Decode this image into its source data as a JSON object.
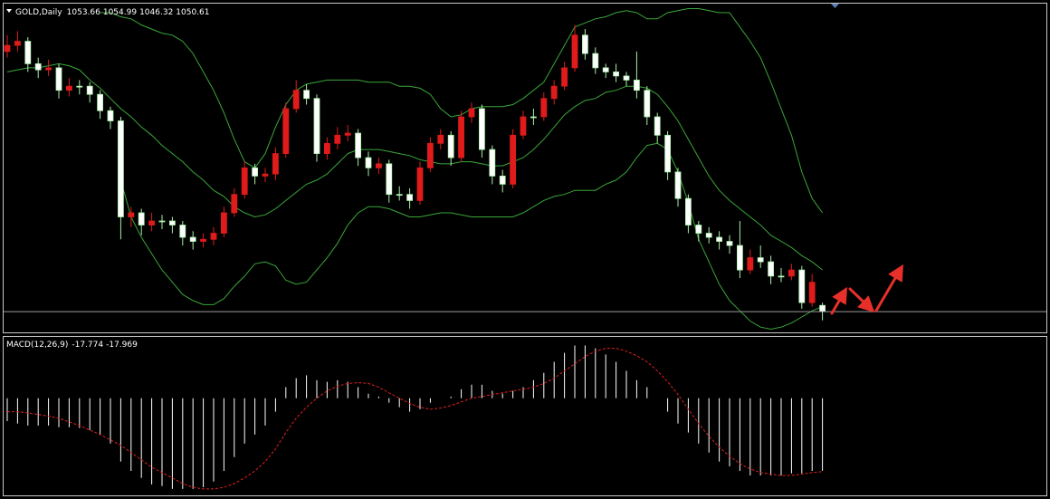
{
  "chart_data": [
    {
      "type": "candlestick",
      "title": "GOLD,Daily",
      "ylim": [
        1040,
        1201
      ],
      "up_color": "#e01b1b",
      "down_color": "#ffffff",
      "down_edge": "#a8f0a8",
      "ohlc": [
        [
          1178,
          1186,
          1175,
          1181
        ],
        [
          1181,
          1188,
          1178,
          1183
        ],
        [
          1183,
          1185,
          1168,
          1172
        ],
        [
          1172,
          1175,
          1165,
          1169
        ],
        [
          1169,
          1174,
          1166,
          1170
        ],
        [
          1170,
          1172,
          1155,
          1159
        ],
        [
          1159,
          1165,
          1156,
          1161
        ],
        [
          1161,
          1164,
          1157,
          1161
        ],
        [
          1161,
          1163,
          1153,
          1157
        ],
        [
          1157,
          1159,
          1145,
          1149
        ],
        [
          1149,
          1151,
          1140,
          1144
        ],
        [
          1144,
          1146,
          1086,
          1097
        ],
        [
          1097,
          1102,
          1092,
          1099
        ],
        [
          1099,
          1101,
          1088,
          1093
        ],
        [
          1093,
          1099,
          1090,
          1095
        ],
        [
          1095,
          1098,
          1091,
          1095
        ],
        [
          1095,
          1097,
          1089,
          1093
        ],
        [
          1093,
          1095,
          1083,
          1087
        ],
        [
          1087,
          1090,
          1081,
          1085
        ],
        [
          1085,
          1089,
          1082,
          1086
        ],
        [
          1086,
          1092,
          1083,
          1089
        ],
        [
          1089,
          1102,
          1087,
          1099
        ],
        [
          1099,
          1111,
          1097,
          1108
        ],
        [
          1108,
          1124,
          1106,
          1121
        ],
        [
          1121,
          1123,
          1113,
          1117
        ],
        [
          1117,
          1121,
          1114,
          1118
        ],
        [
          1118,
          1131,
          1115,
          1128
        ],
        [
          1128,
          1153,
          1126,
          1150
        ],
        [
          1150,
          1164,
          1148,
          1159
        ],
        [
          1159,
          1162,
          1152,
          1155
        ],
        [
          1155,
          1157,
          1124,
          1128
        ],
        [
          1128,
          1136,
          1125,
          1133
        ],
        [
          1133,
          1141,
          1130,
          1137
        ],
        [
          1137,
          1142,
          1134,
          1138
        ],
        [
          1138,
          1140,
          1122,
          1126
        ],
        [
          1126,
          1129,
          1117,
          1121
        ],
        [
          1121,
          1126,
          1118,
          1123
        ],
        [
          1123,
          1125,
          1104,
          1108
        ],
        [
          1108,
          1112,
          1105,
          1108
        ],
        [
          1108,
          1111,
          1101,
          1105
        ],
        [
          1105,
          1124,
          1103,
          1121
        ],
        [
          1121,
          1136,
          1119,
          1133
        ],
        [
          1133,
          1140,
          1130,
          1137
        ],
        [
          1137,
          1139,
          1122,
          1126
        ],
        [
          1126,
          1149,
          1124,
          1146
        ],
        [
          1146,
          1153,
          1143,
          1150
        ],
        [
          1150,
          1152,
          1126,
          1130
        ],
        [
          1130,
          1132,
          1113,
          1117
        ],
        [
          1117,
          1120,
          1109,
          1113
        ],
        [
          1113,
          1140,
          1111,
          1137
        ],
        [
          1137,
          1149,
          1135,
          1146
        ],
        [
          1146,
          1150,
          1142,
          1146
        ],
        [
          1146,
          1158,
          1144,
          1155
        ],
        [
          1155,
          1164,
          1152,
          1161
        ],
        [
          1161,
          1173,
          1159,
          1170
        ],
        [
          1170,
          1191,
          1168,
          1186
        ],
        [
          1186,
          1189,
          1174,
          1177
        ],
        [
          1177,
          1180,
          1167,
          1170
        ],
        [
          1170,
          1172,
          1165,
          1168
        ],
        [
          1168,
          1172,
          1163,
          1166
        ],
        [
          1166,
          1168,
          1161,
          1164
        ],
        [
          1164,
          1178,
          1155,
          1159
        ],
        [
          1159,
          1161,
          1142,
          1146
        ],
        [
          1146,
          1148,
          1133,
          1137
        ],
        [
          1137,
          1139,
          1115,
          1119
        ],
        [
          1119,
          1121,
          1102,
          1106
        ],
        [
          1106,
          1108,
          1089,
          1093
        ],
        [
          1093,
          1095,
          1085,
          1089
        ],
        [
          1089,
          1092,
          1084,
          1087
        ],
        [
          1087,
          1090,
          1081,
          1085
        ],
        [
          1085,
          1088,
          1079,
          1083
        ],
        [
          1083,
          1095,
          1067,
          1071
        ],
        [
          1071,
          1081,
          1069,
          1077
        ],
        [
          1077,
          1083,
          1072,
          1075
        ],
        [
          1075,
          1078,
          1064,
          1068
        ],
        [
          1068,
          1072,
          1065,
          1068
        ],
        [
          1068,
          1074,
          1066,
          1071
        ],
        [
          1071,
          1073,
          1052,
          1055
        ],
        [
          1055,
          1069,
          1053,
          1065
        ],
        [
          1053.66,
          1054.99,
          1046.32,
          1050.61
        ]
      ],
      "lines": [
        {
          "color": "#3aa63a",
          "values": [
            null,
            null,
            null,
            null,
            null,
            null,
            null,
            null,
            null,
            1197,
            1197,
            1195,
            1194,
            1191,
            1189,
            1187,
            1186,
            1183,
            1177,
            1168,
            1159,
            1148,
            1135,
            1124,
            1121,
            1128,
            1141,
            1152,
            1159,
            1162,
            1163,
            1164,
            1164,
            1164,
            1164,
            1163,
            1163,
            1163,
            1161,
            1161,
            1160,
            1157,
            1150,
            1146,
            1147,
            1150,
            1151,
            1151,
            1151,
            1152,
            1155,
            1159,
            1163,
            1172,
            1181,
            1190,
            1192,
            1194,
            1195,
            1197,
            1198,
            1197,
            1194,
            1194,
            1197,
            1198,
            1199,
            1199,
            1198,
            1197,
            1197,
            1190,
            1183,
            1175,
            1163,
            1150,
            1137,
            1119,
            1106,
            1099
          ]
        },
        {
          "color": "#3aa63a",
          "values": [
            1168,
            1169,
            1170,
            1170,
            1171,
            1172,
            1171,
            1169,
            1164,
            1160,
            1155,
            1150,
            1146,
            1141,
            1137,
            1132,
            1128,
            1124,
            1119,
            1115,
            1110,
            1107,
            1102,
            1099,
            1097,
            1098,
            1101,
            1105,
            1109,
            1113,
            1115,
            1118,
            1123,
            1128,
            1130,
            1130,
            1130,
            1129,
            1128,
            1127,
            1125,
            1124,
            1123,
            1123,
            1124,
            1124,
            1123,
            1122,
            1122,
            1124,
            1126,
            1130,
            1135,
            1141,
            1147,
            1151,
            1154,
            1155,
            1158,
            1159,
            1161,
            1161,
            1160,
            1157,
            1151,
            1144,
            1135,
            1126,
            1117,
            1110,
            1105,
            1101,
            1097,
            1093,
            1088,
            1085,
            1082,
            1078,
            1075,
            1071
          ]
        },
        {
          "color": "#3aa63a",
          "values": [
            null,
            null,
            null,
            null,
            null,
            null,
            null,
            null,
            null,
            null,
            null,
            1115,
            1097,
            1087,
            1079,
            1071,
            1065,
            1059,
            1056,
            1054,
            1054,
            1057,
            1063,
            1068,
            1074,
            1075,
            1073,
            1066,
            1064,
            1065,
            1071,
            1077,
            1084,
            1093,
            1099,
            1102,
            1102,
            1101,
            1099,
            1097,
            1097,
            1098,
            1099,
            1099,
            1098,
            1097,
            1097,
            1097,
            1097,
            1097,
            1099,
            1102,
            1105,
            1107,
            1108,
            1110,
            1110,
            1110,
            1113,
            1115,
            1119,
            1126,
            1132,
            1133,
            1130,
            1119,
            1104,
            1086,
            1075,
            1064,
            1056,
            1051,
            1046,
            1043,
            1042,
            1043,
            1045,
            1048,
            1051,
            1053
          ]
        }
      ]
    },
    {
      "type": "macd",
      "title": "MACD(12,26,9)",
      "ylim": [
        -24,
        15
      ],
      "series": [
        {
          "color": "#ffffff",
          "values": [
            -5.6,
            -6.2,
            -6.7,
            -6.7,
            -6.7,
            -7.1,
            -7.1,
            -7.3,
            -7.8,
            -8.9,
            -11.1,
            -15.5,
            -17.8,
            -19.5,
            -21.1,
            -21.5,
            -22.2,
            -22.2,
            -22.2,
            -21.8,
            -20.4,
            -17.8,
            -14.4,
            -11.1,
            -8.9,
            -6.7,
            -3.3,
            2.7,
            4.9,
            5.6,
            4.4,
            4.0,
            4.4,
            4.0,
            2.7,
            1.1,
            0.4,
            -1.1,
            -2.2,
            -3.3,
            -2.7,
            -1.1,
            0,
            0.4,
            2.2,
            3.3,
            3.3,
            1.8,
            1.1,
            1.8,
            2.7,
            4.4,
            6.2,
            8.9,
            11.1,
            12.9,
            12.9,
            12.2,
            10.7,
            8.9,
            6.7,
            4.4,
            2.7,
            0,
            -3.3,
            -6.2,
            -8.4,
            -11.1,
            -13.3,
            -15.5,
            -16.7,
            -17.8,
            -18.9,
            -18.9,
            -18.9,
            -18.9,
            -18.4,
            -18.4,
            -17.8,
            -17.774
          ]
        },
        {
          "color": "#e02020",
          "values": [
            -3.3,
            -3.3,
            -3.6,
            -4.0,
            -4.4,
            -4.9,
            -5.8,
            -6.7,
            -7.8,
            -8.9,
            -10.2,
            -11.5,
            -13.3,
            -15.1,
            -16.9,
            -18.2,
            -19.5,
            -20.9,
            -21.8,
            -22.2,
            -22.2,
            -21.8,
            -20.9,
            -19.5,
            -17.8,
            -15.5,
            -12.4,
            -8.4,
            -4.9,
            -2.2,
            0,
            1.8,
            2.9,
            3.6,
            3.8,
            3.6,
            2.7,
            1.3,
            0,
            -1.3,
            -2.2,
            -2.7,
            -2.4,
            -1.8,
            -0.9,
            0,
            0.4,
            0.9,
            1.3,
            1.8,
            2.2,
            2.7,
            3.6,
            4.9,
            6.7,
            8.4,
            10.2,
            11.5,
            12.2,
            12.2,
            11.5,
            10.4,
            8.9,
            6.7,
            4.0,
            0.9,
            -2.7,
            -6.2,
            -9.3,
            -12.0,
            -14.2,
            -16.0,
            -17.3,
            -18.2,
            -18.6,
            -18.9,
            -18.9,
            -18.6,
            -18.2,
            -17.969
          ]
        }
      ]
    }
  ]
}
